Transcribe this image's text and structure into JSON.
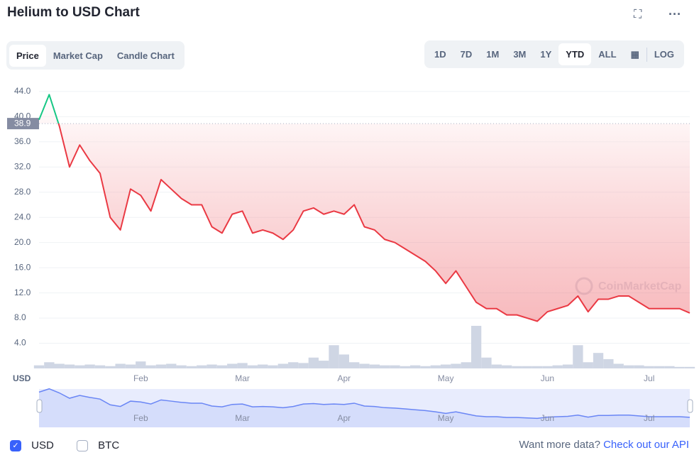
{
  "header": {
    "title": "Helium to USD Chart",
    "tabs": [
      "Price",
      "Market Cap",
      "Candle Chart"
    ],
    "ranges": [
      "1D",
      "7D",
      "1M",
      "3M",
      "1Y",
      "YTD",
      "ALL"
    ],
    "log_button": "LOG"
  },
  "chart_data": {
    "type": "line",
    "y_axis_label": "USD",
    "watermark": "CoinMarketCap",
    "categories": [
      null,
      null,
      null,
      null,
      null,
      null,
      null,
      null,
      null,
      null,
      "Feb",
      null,
      null,
      null,
      null,
      null,
      null,
      null,
      null,
      null,
      "Mar",
      null,
      null,
      null,
      null,
      null,
      null,
      null,
      null,
      null,
      "Apr",
      null,
      null,
      null,
      null,
      null,
      null,
      null,
      null,
      null,
      "May",
      null,
      null,
      null,
      null,
      null,
      null,
      null,
      null,
      null,
      "Jun",
      null,
      null,
      null,
      null,
      null,
      null,
      null,
      null,
      null,
      "Jul",
      null,
      null,
      null,
      null
    ],
    "series": [
      {
        "name": "USD",
        "color": "#ea3943",
        "color_above": "#16c784",
        "values": [
          39.5,
          43.5,
          38.5,
          32,
          35.5,
          33,
          31,
          24,
          22,
          28.5,
          27.5,
          25,
          30,
          28.5,
          27,
          26,
          26,
          22.5,
          21.5,
          24.5,
          25,
          21.5,
          22,
          21.5,
          20.5,
          22,
          25,
          25.5,
          24.5,
          25,
          24.5,
          26,
          22.5,
          22,
          20.5,
          20,
          19,
          18,
          17,
          15.5,
          13.5,
          15.5,
          13,
          10.5,
          9.5,
          9.5,
          8.5,
          8.5,
          8,
          7.5,
          9,
          9.5,
          10,
          11.5,
          9,
          11,
          11,
          11.5,
          11.5,
          10.5,
          9.5,
          9.5,
          9.5,
          9.5,
          8.8
        ]
      }
    ],
    "volume": [
      4,
      8,
      6,
      5,
      4,
      5,
      4,
      3,
      6,
      5,
      9,
      4,
      5,
      6,
      4,
      3,
      4,
      5,
      4,
      6,
      7,
      4,
      5,
      4,
      6,
      8,
      7,
      14,
      10,
      30,
      18,
      8,
      6,
      5,
      4,
      4,
      3,
      4,
      3,
      4,
      5,
      6,
      8,
      55,
      14,
      5,
      4,
      3,
      3,
      3,
      3,
      4,
      5,
      30,
      8,
      20,
      12,
      6,
      4,
      4,
      3,
      3,
      3,
      2,
      2
    ],
    "reference_value": 38.9,
    "ylim": [
      0,
      45
    ],
    "yticks": [
      {
        "value": 4,
        "label": "4.0"
      },
      {
        "value": 8,
        "label": "8.0"
      },
      {
        "value": 12,
        "label": "12.0"
      },
      {
        "value": 16,
        "label": "16.0"
      },
      {
        "value": 20,
        "label": "20.0"
      },
      {
        "value": 24,
        "label": "24.0"
      },
      {
        "value": 28,
        "label": "28.0"
      },
      {
        "value": 32,
        "label": "32.0"
      },
      {
        "value": 36,
        "label": "36.0"
      },
      {
        "value": 40,
        "label": "40.0"
      },
      {
        "value": 44,
        "label": "44.0"
      }
    ],
    "grid": true
  },
  "footer": {
    "currencies": [
      "USD",
      "BTC"
    ],
    "prompt": "Want more data?",
    "link": "Check out our API"
  }
}
